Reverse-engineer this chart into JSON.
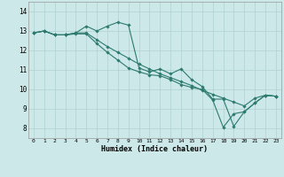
{
  "title": "",
  "xlabel": "Humidex (Indice chaleur)",
  "ylabel": "",
  "background_color": "#cce8e8",
  "grid_color": "#b0d0d0",
  "line_color": "#2d7a6e",
  "xlim": [
    -0.5,
    23.5
  ],
  "ylim": [
    7.5,
    14.5
  ],
  "xtick_labels": [
    "0",
    "1",
    "2",
    "3",
    "4",
    "5",
    "6",
    "7",
    "8",
    "9",
    "10",
    "11",
    "12",
    "13",
    "14",
    "15",
    "16",
    "17",
    "18",
    "19",
    "20",
    "21",
    "22",
    "23"
  ],
  "ytick_values": [
    8,
    9,
    10,
    11,
    12,
    13,
    14
  ],
  "series1_x": [
    0,
    1,
    2,
    3,
    4,
    5,
    6,
    7,
    8,
    9,
    10,
    11,
    12,
    13,
    14,
    15,
    16,
    17,
    18,
    19,
    20,
    21,
    22,
    23
  ],
  "series1_y": [
    12.9,
    13.0,
    12.8,
    12.8,
    12.9,
    13.25,
    13.0,
    13.25,
    13.45,
    13.3,
    11.1,
    10.9,
    11.05,
    10.8,
    11.05,
    10.5,
    10.15,
    9.5,
    9.5,
    8.1,
    8.85,
    9.3,
    9.7,
    9.65
  ],
  "series2_x": [
    0,
    1,
    2,
    3,
    4,
    5,
    6,
    7,
    8,
    9,
    10,
    11,
    12,
    13,
    14,
    15,
    16,
    17,
    18,
    19,
    20,
    21,
    22,
    23
  ],
  "series2_y": [
    12.9,
    13.0,
    12.8,
    12.8,
    12.9,
    12.9,
    12.55,
    12.2,
    11.9,
    11.6,
    11.3,
    11.05,
    10.8,
    10.6,
    10.4,
    10.2,
    9.95,
    9.75,
    9.55,
    9.35,
    9.15,
    9.55,
    9.7,
    9.65
  ],
  "series3_x": [
    0,
    1,
    2,
    3,
    4,
    5,
    6,
    7,
    8,
    9,
    10,
    11,
    12,
    13,
    14,
    15,
    16,
    17,
    18,
    19,
    20,
    21,
    22,
    23
  ],
  "series3_y": [
    12.9,
    13.0,
    12.8,
    12.8,
    12.85,
    12.85,
    12.35,
    11.9,
    11.5,
    11.1,
    10.9,
    10.75,
    10.7,
    10.5,
    10.25,
    10.1,
    10.0,
    9.45,
    8.05,
    8.75,
    8.85,
    9.3,
    9.7,
    9.65
  ]
}
